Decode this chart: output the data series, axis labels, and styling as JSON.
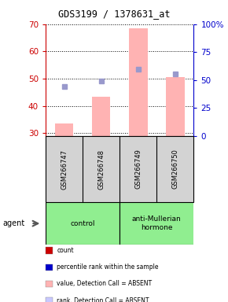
{
  "title": "GDS3199 / 1378631_at",
  "samples": [
    "GSM266747",
    "GSM266748",
    "GSM266749",
    "GSM266750"
  ],
  "bar_values": [
    33.5,
    43.5,
    68.5,
    50.5
  ],
  "bar_color": "#ffb3b3",
  "rank_dots": [
    47.2,
    49.1,
    53.5,
    51.7
  ],
  "rank_dot_color": "#9999cc",
  "rank_dot_size": 25,
  "ylim_left": [
    29,
    70
  ],
  "ylim_right": [
    0,
    100
  ],
  "yticks_left": [
    30,
    40,
    50,
    60,
    70
  ],
  "yticks_right": [
    0,
    25,
    50,
    75,
    100
  ],
  "ytick_labels_right": [
    "0",
    "25",
    "50",
    "75",
    "100%"
  ],
  "left_tick_color": "#cc0000",
  "right_tick_color": "#0000cc",
  "bar_width": 0.5,
  "sample_box_color": "#d3d3d3",
  "group_info": [
    {
      "label": "control",
      "start": 0,
      "end": 2,
      "color": "#90ee90"
    },
    {
      "label": "anti-Mullerian\nhormone",
      "start": 2,
      "end": 4,
      "color": "#90ee90"
    }
  ],
  "legend_items": [
    {
      "label": "count",
      "color": "#cc0000"
    },
    {
      "label": "percentile rank within the sample",
      "color": "#0000cc"
    },
    {
      "label": "value, Detection Call = ABSENT",
      "color": "#ffb3b3"
    },
    {
      "label": "rank, Detection Call = ABSENT",
      "color": "#c8c8ff"
    }
  ],
  "figsize": [
    2.9,
    3.84
  ],
  "dpi": 100
}
